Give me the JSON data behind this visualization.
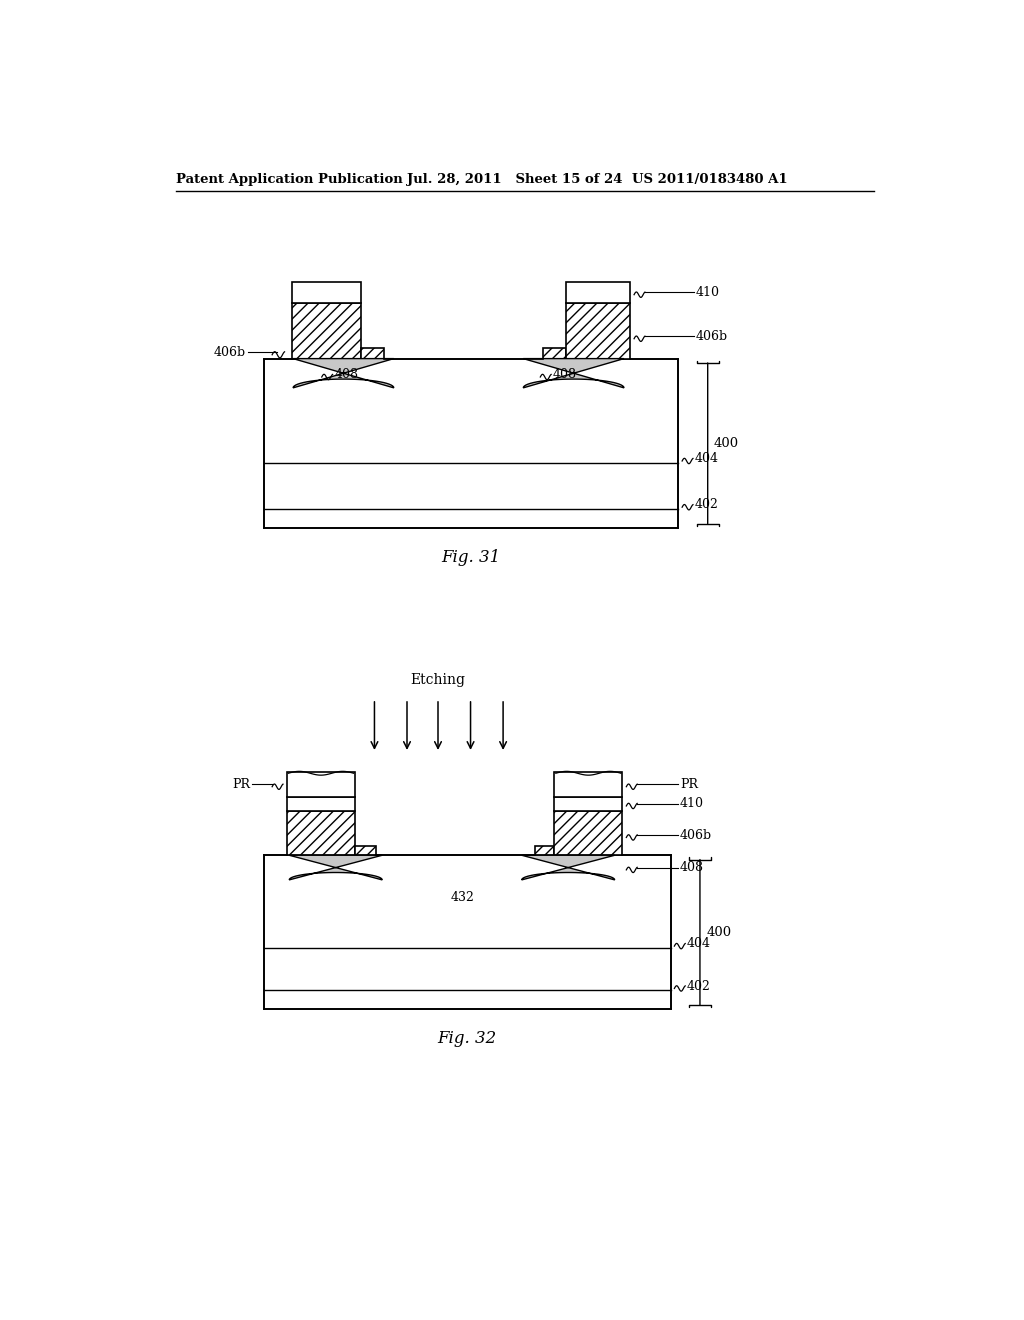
{
  "header_left": "Patent Application Publication",
  "header_mid": "Jul. 28, 2011   Sheet 15 of 24",
  "header_right": "US 2011/0183480 A1",
  "fig31_caption": "Fig. 31",
  "fig32_caption": "Fig. 32",
  "fig32_etching_label": "Etching",
  "bg_color": "#ffffff"
}
